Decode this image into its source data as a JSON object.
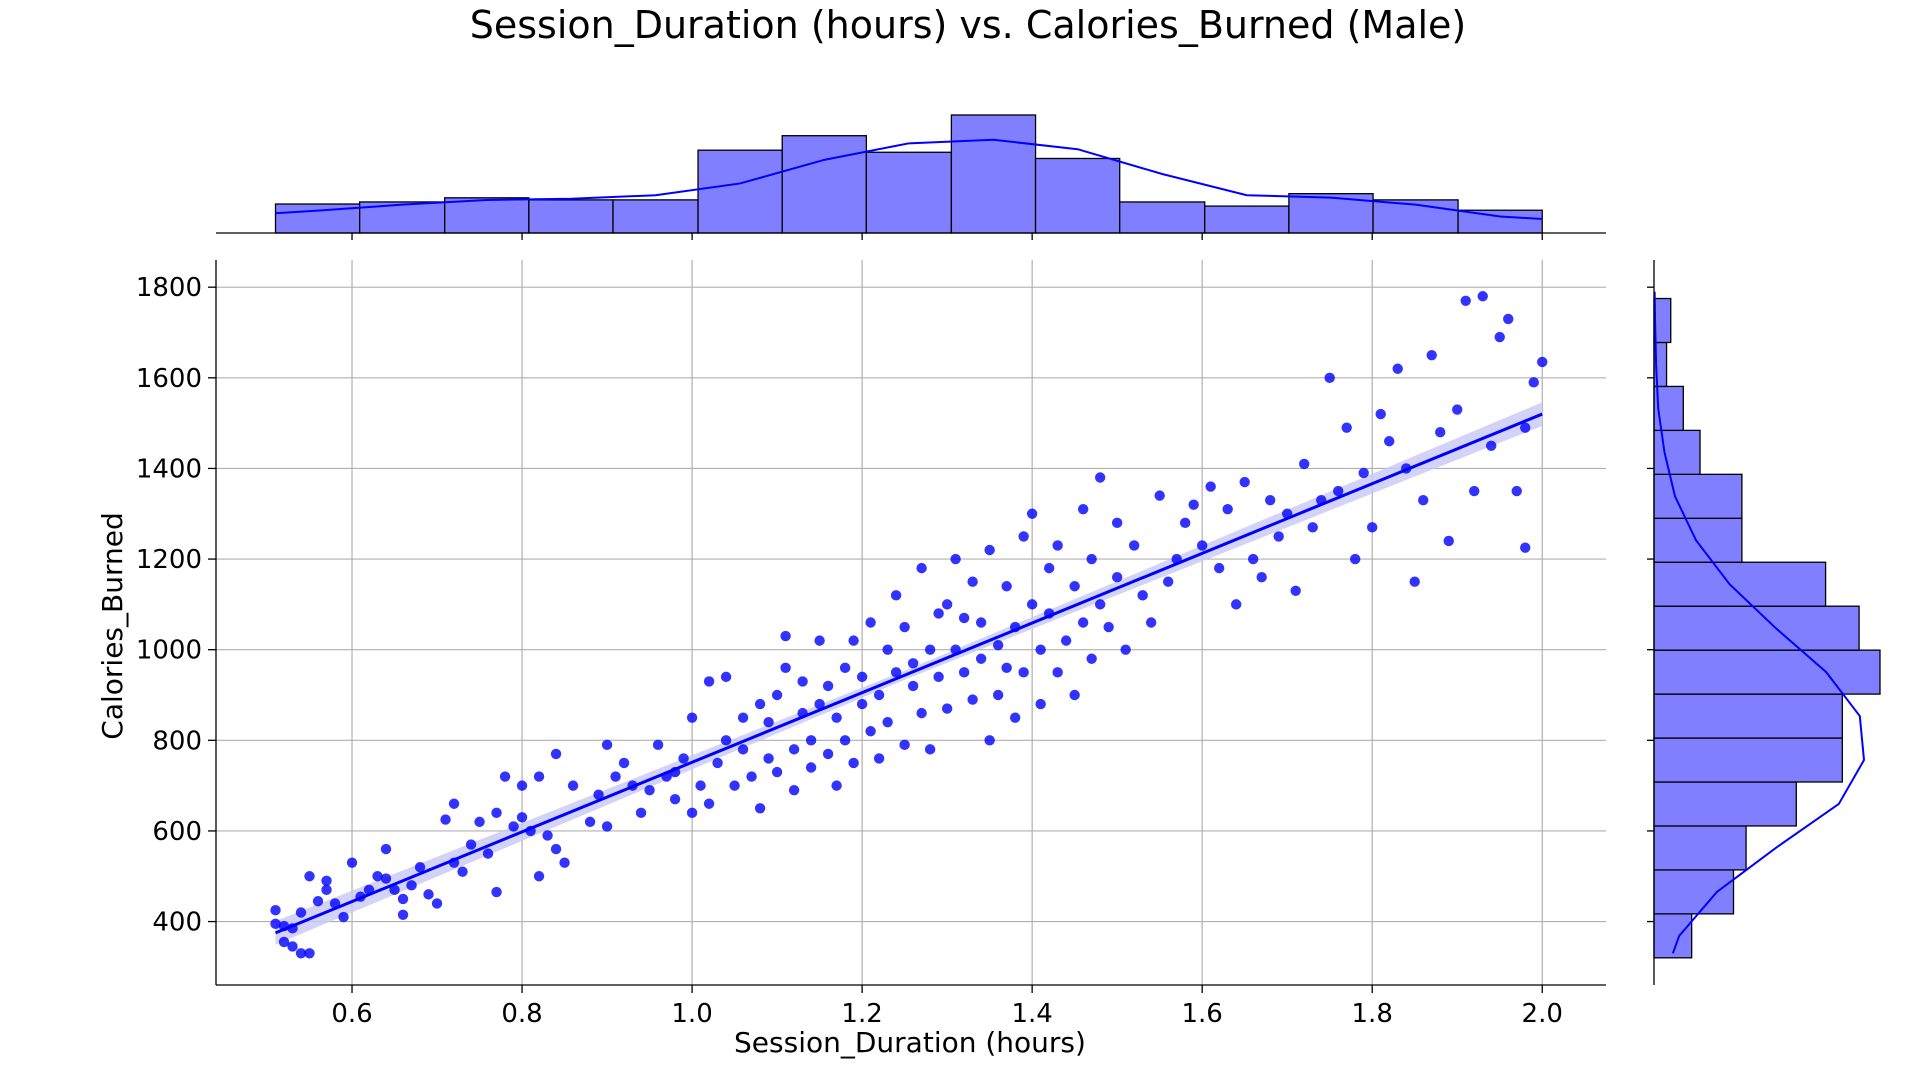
{
  "chart_data": {
    "type": "scatter",
    "title": "Session_Duration (hours) vs. Calories_Burned (Male)",
    "xlabel": "Session_Duration (hours)",
    "ylabel": "Calories_Burned",
    "xlim": [
      0.44,
      2.075
    ],
    "ylim": [
      260,
      1860
    ],
    "xticks": [
      0.6,
      0.8,
      1.0,
      1.2,
      1.4,
      1.6,
      1.8,
      2.0
    ],
    "xtick_labels": [
      "0.6",
      "0.8",
      "1.0",
      "1.2",
      "1.4",
      "1.6",
      "1.8",
      "2.0"
    ],
    "yticks": [
      400,
      600,
      800,
      1000,
      1200,
      1400,
      1600,
      1800
    ],
    "ytick_labels": [
      "400",
      "600",
      "800",
      "1000",
      "1200",
      "1400",
      "1600",
      "1800"
    ],
    "grid": true,
    "colors": {
      "points": "#0000ff",
      "hist_fill": "#7f7fff",
      "hist_edge": "#000000",
      "kde": "#0000ff",
      "ci_band": "#c8c8f5"
    },
    "regression": {
      "x": [
        0.51,
        2.0
      ],
      "y": [
        375,
        1520
      ],
      "ci_halfwidth": 20
    },
    "scatter_points": [
      [
        0.51,
        425
      ],
      [
        0.51,
        395
      ],
      [
        0.52,
        390
      ],
      [
        0.52,
        355
      ],
      [
        0.53,
        345
      ],
      [
        0.53,
        385
      ],
      [
        0.54,
        330
      ],
      [
        0.54,
        420
      ],
      [
        0.55,
        500
      ],
      [
        0.55,
        330
      ],
      [
        0.56,
        445
      ],
      [
        0.57,
        470
      ],
      [
        0.57,
        490
      ],
      [
        0.58,
        440
      ],
      [
        0.59,
        410
      ],
      [
        0.6,
        530
      ],
      [
        0.61,
        455
      ],
      [
        0.62,
        470
      ],
      [
        0.63,
        500
      ],
      [
        0.64,
        495
      ],
      [
        0.64,
        560
      ],
      [
        0.65,
        470
      ],
      [
        0.66,
        450
      ],
      [
        0.66,
        415
      ],
      [
        0.67,
        480
      ],
      [
        0.68,
        520
      ],
      [
        0.69,
        460
      ],
      [
        0.7,
        440
      ],
      [
        0.71,
        625
      ],
      [
        0.72,
        530
      ],
      [
        0.72,
        660
      ],
      [
        0.73,
        510
      ],
      [
        0.74,
        570
      ],
      [
        0.75,
        620
      ],
      [
        0.76,
        550
      ],
      [
        0.77,
        640
      ],
      [
        0.77,
        465
      ],
      [
        0.78,
        720
      ],
      [
        0.79,
        610
      ],
      [
        0.8,
        700
      ],
      [
        0.8,
        630
      ],
      [
        0.81,
        600
      ],
      [
        0.82,
        720
      ],
      [
        0.82,
        500
      ],
      [
        0.83,
        590
      ],
      [
        0.84,
        770
      ],
      [
        0.84,
        560
      ],
      [
        0.85,
        530
      ],
      [
        0.86,
        700
      ],
      [
        0.88,
        620
      ],
      [
        0.89,
        680
      ],
      [
        0.9,
        790
      ],
      [
        0.9,
        610
      ],
      [
        0.91,
        720
      ],
      [
        0.92,
        750
      ],
      [
        0.93,
        700
      ],
      [
        0.94,
        640
      ],
      [
        0.95,
        690
      ],
      [
        0.96,
        790
      ],
      [
        0.97,
        720
      ],
      [
        0.98,
        730
      ],
      [
        0.98,
        670
      ],
      [
        0.99,
        760
      ],
      [
        1.0,
        640
      ],
      [
        1.0,
        850
      ],
      [
        1.01,
        700
      ],
      [
        1.02,
        930
      ],
      [
        1.02,
        660
      ],
      [
        1.03,
        750
      ],
      [
        1.04,
        800
      ],
      [
        1.04,
        940
      ],
      [
        1.05,
        700
      ],
      [
        1.06,
        780
      ],
      [
        1.06,
        850
      ],
      [
        1.07,
        720
      ],
      [
        1.08,
        880
      ],
      [
        1.08,
        650
      ],
      [
        1.09,
        760
      ],
      [
        1.09,
        840
      ],
      [
        1.1,
        900
      ],
      [
        1.1,
        730
      ],
      [
        1.11,
        960
      ],
      [
        1.11,
        1030
      ],
      [
        1.12,
        780
      ],
      [
        1.12,
        690
      ],
      [
        1.13,
        860
      ],
      [
        1.13,
        930
      ],
      [
        1.14,
        800
      ],
      [
        1.14,
        740
      ],
      [
        1.15,
        880
      ],
      [
        1.15,
        1020
      ],
      [
        1.16,
        770
      ],
      [
        1.16,
        920
      ],
      [
        1.17,
        850
      ],
      [
        1.17,
        700
      ],
      [
        1.18,
        800
      ],
      [
        1.18,
        960
      ],
      [
        1.19,
        1020
      ],
      [
        1.19,
        750
      ],
      [
        1.2,
        880
      ],
      [
        1.2,
        940
      ],
      [
        1.21,
        820
      ],
      [
        1.21,
        1060
      ],
      [
        1.22,
        760
      ],
      [
        1.22,
        900
      ],
      [
        1.23,
        1000
      ],
      [
        1.23,
        840
      ],
      [
        1.24,
        950
      ],
      [
        1.24,
        1120
      ],
      [
        1.25,
        790
      ],
      [
        1.25,
        1050
      ],
      [
        1.26,
        920
      ],
      [
        1.26,
        970
      ],
      [
        1.27,
        860
      ],
      [
        1.27,
        1180
      ],
      [
        1.28,
        1000
      ],
      [
        1.28,
        780
      ],
      [
        1.29,
        1080
      ],
      [
        1.29,
        940
      ],
      [
        1.3,
        1100
      ],
      [
        1.3,
        870
      ],
      [
        1.31,
        1000
      ],
      [
        1.31,
        1200
      ],
      [
        1.32,
        950
      ],
      [
        1.32,
        1070
      ],
      [
        1.33,
        890
      ],
      [
        1.33,
        1150
      ],
      [
        1.34,
        980
      ],
      [
        1.34,
        1060
      ],
      [
        1.35,
        800
      ],
      [
        1.35,
        1220
      ],
      [
        1.36,
        1010
      ],
      [
        1.36,
        900
      ],
      [
        1.37,
        1140
      ],
      [
        1.37,
        960
      ],
      [
        1.38,
        1050
      ],
      [
        1.38,
        850
      ],
      [
        1.39,
        1250
      ],
      [
        1.39,
        950
      ],
      [
        1.4,
        1100
      ],
      [
        1.4,
        1300
      ],
      [
        1.41,
        1000
      ],
      [
        1.41,
        880
      ],
      [
        1.42,
        1180
      ],
      [
        1.42,
        1080
      ],
      [
        1.43,
        950
      ],
      [
        1.43,
        1230
      ],
      [
        1.44,
        1020
      ],
      [
        1.45,
        1140
      ],
      [
        1.45,
        900
      ],
      [
        1.46,
        1310
      ],
      [
        1.46,
        1060
      ],
      [
        1.47,
        1200
      ],
      [
        1.47,
        980
      ],
      [
        1.48,
        1100
      ],
      [
        1.48,
        1380
      ],
      [
        1.49,
        1050
      ],
      [
        1.5,
        1280
      ],
      [
        1.5,
        1160
      ],
      [
        1.51,
        1000
      ],
      [
        1.52,
        1230
      ],
      [
        1.53,
        1120
      ],
      [
        1.54,
        1060
      ],
      [
        1.55,
        1340
      ],
      [
        1.56,
        1150
      ],
      [
        1.57,
        1200
      ],
      [
        1.58,
        1280
      ],
      [
        1.59,
        1320
      ],
      [
        1.6,
        1230
      ],
      [
        1.61,
        1360
      ],
      [
        1.62,
        1180
      ],
      [
        1.63,
        1310
      ],
      [
        1.64,
        1100
      ],
      [
        1.65,
        1370
      ],
      [
        1.66,
        1200
      ],
      [
        1.67,
        1160
      ],
      [
        1.68,
        1330
      ],
      [
        1.69,
        1250
      ],
      [
        1.7,
        1300
      ],
      [
        1.71,
        1130
      ],
      [
        1.72,
        1410
      ],
      [
        1.73,
        1270
      ],
      [
        1.74,
        1330
      ],
      [
        1.75,
        1600
      ],
      [
        1.76,
        1350
      ],
      [
        1.77,
        1490
      ],
      [
        1.78,
        1200
      ],
      [
        1.79,
        1390
      ],
      [
        1.8,
        1270
      ],
      [
        1.81,
        1520
      ],
      [
        1.82,
        1460
      ],
      [
        1.83,
        1620
      ],
      [
        1.84,
        1400
      ],
      [
        1.85,
        1150
      ],
      [
        1.86,
        1330
      ],
      [
        1.87,
        1650
      ],
      [
        1.88,
        1480
      ],
      [
        1.89,
        1240
      ],
      [
        1.9,
        1530
      ],
      [
        1.91,
        1770
      ],
      [
        1.92,
        1350
      ],
      [
        1.93,
        1780
      ],
      [
        1.94,
        1450
      ],
      [
        1.95,
        1690
      ],
      [
        1.96,
        1730
      ],
      [
        1.97,
        1350
      ],
      [
        1.98,
        1490
      ],
      [
        1.98,
        1225
      ],
      [
        1.99,
        1590
      ],
      [
        2.0,
        1635
      ]
    ],
    "x_histogram": {
      "bin_edges": [
        0.51,
        0.609,
        0.709,
        0.808,
        0.907,
        1.007,
        1.106,
        1.205,
        1.305,
        1.404,
        1.503,
        1.603,
        1.702,
        1.801,
        1.901,
        2.0
      ],
      "counts": [
        14,
        15,
        17,
        16,
        16,
        40,
        47,
        39,
        57,
        36,
        15,
        13,
        19,
        16,
        11
      ],
      "kde_y": [
        0.19,
        0.24,
        0.28,
        0.29,
        0.32,
        0.42,
        0.62,
        0.76,
        0.79,
        0.71,
        0.5,
        0.32,
        0.3,
        0.24,
        0.14
      ]
    },
    "y_histogram": {
      "bin_edges": [
        320,
        417,
        514,
        611,
        708,
        805,
        902,
        999,
        1096,
        1193,
        1290,
        1387,
        1484,
        1581,
        1678,
        1775
      ],
      "counts": [
        9,
        19,
        22,
        34,
        45,
        45,
        54,
        49,
        41,
        21,
        21,
        11,
        7,
        3,
        4
      ],
      "kde_x": [
        0.12,
        0.3,
        0.58,
        0.88,
        1.0,
        0.98,
        0.82,
        0.58,
        0.36,
        0.2,
        0.1,
        0.05,
        0.02,
        0.01,
        0.005
      ]
    }
  }
}
